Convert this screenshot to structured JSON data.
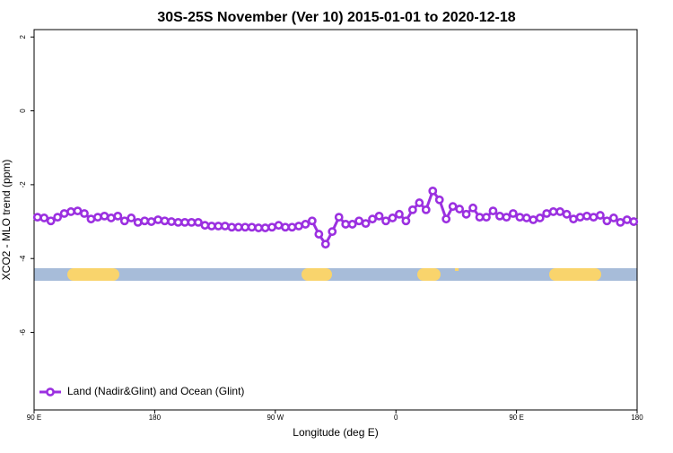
{
  "chart_data": {
    "type": "line",
    "title": "30S-25S November (Ver 10)   2015-01-01 to 2020-12-18",
    "x_label": "Longitude (deg E)",
    "y_label": "XCO2 - MLO trend (ppm)",
    "x": [
      92.5,
      97.5,
      102.5,
      107.5,
      112.5,
      117.5,
      122.5,
      127.5,
      132.5,
      137.5,
      142.5,
      147.5,
      152.5,
      157.5,
      162.5,
      167.5,
      172.5,
      177.5,
      182.5,
      187.5,
      192.5,
      197.5,
      202.5,
      207.5,
      212.5,
      217.5,
      222.5,
      227.5,
      232.5,
      237.5,
      242.5,
      247.5,
      252.5,
      257.5,
      262.5,
      267.5,
      272.5,
      277.5,
      282.5,
      287.5,
      292.5,
      297.5,
      302.5,
      307.5,
      312.5,
      317.5,
      322.5,
      327.5,
      332.5,
      337.5,
      342.5,
      347.5,
      352.5,
      357.5,
      362.5,
      367.5,
      372.5,
      377.5,
      382.5,
      387.5,
      392.5,
      397.5,
      402.5,
      407.5,
      412.5,
      417.5,
      422.5,
      427.5,
      432.5,
      437.5,
      442.5,
      447.5,
      452.5,
      457.5,
      462.5,
      467.5,
      472.5,
      477.5,
      482.5,
      487.5,
      492.5,
      497.5,
      502.5,
      507.5,
      512.5,
      517.5,
      522.5,
      527.5,
      532.5,
      537.5
    ],
    "series": [
      {
        "name": "Land (Nadir&Glint) and Ocean (Glint)",
        "color": "#9b30e0",
        "values": [
          -2.88,
          -2.9,
          -2.98,
          -2.88,
          -2.78,
          -2.73,
          -2.71,
          -2.78,
          -2.93,
          -2.88,
          -2.85,
          -2.9,
          -2.85,
          -2.98,
          -2.9,
          -3.02,
          -2.98,
          -3.0,
          -2.95,
          -2.98,
          -3.0,
          -3.02,
          -3.02,
          -3.02,
          -3.02,
          -3.1,
          -3.12,
          -3.12,
          -3.12,
          -3.15,
          -3.15,
          -3.15,
          -3.15,
          -3.17,
          -3.17,
          -3.15,
          -3.1,
          -3.15,
          -3.15,
          -3.12,
          -3.07,
          -2.98,
          -3.34,
          -3.61,
          -3.27,
          -2.88,
          -3.07,
          -3.07,
          -2.98,
          -3.05,
          -2.93,
          -2.85,
          -2.98,
          -2.9,
          -2.8,
          -2.98,
          -2.68,
          -2.49,
          -2.68,
          -2.17,
          -2.41,
          -2.93,
          -2.59,
          -2.66,
          -2.8,
          -2.63,
          -2.88,
          -2.88,
          -2.71,
          -2.85,
          -2.88,
          -2.78,
          -2.88,
          -2.9,
          -2.95,
          -2.9,
          -2.78,
          -2.73,
          -2.73,
          -2.8,
          -2.93,
          -2.88,
          -2.85,
          -2.88,
          -2.83,
          -2.98,
          -2.9,
          -3.02,
          -2.95,
          -3.0
        ]
      }
    ],
    "xlim": [
      90,
      540
    ],
    "xticks": [
      {
        "value": 90,
        "label": "90 E"
      },
      180,
      {
        "value": 270,
        "label": "90 W"
      },
      {
        "value": 360,
        "label": "0"
      },
      {
        "value": 450,
        "label": "90 E"
      },
      {
        "value": 540,
        "label": "180"
      }
    ],
    "ylim": [
      -8.1,
      2.2
    ],
    "yticks": [
      2,
      0,
      -2,
      -4,
      -6
    ],
    "legend": "bottom-left"
  }
}
